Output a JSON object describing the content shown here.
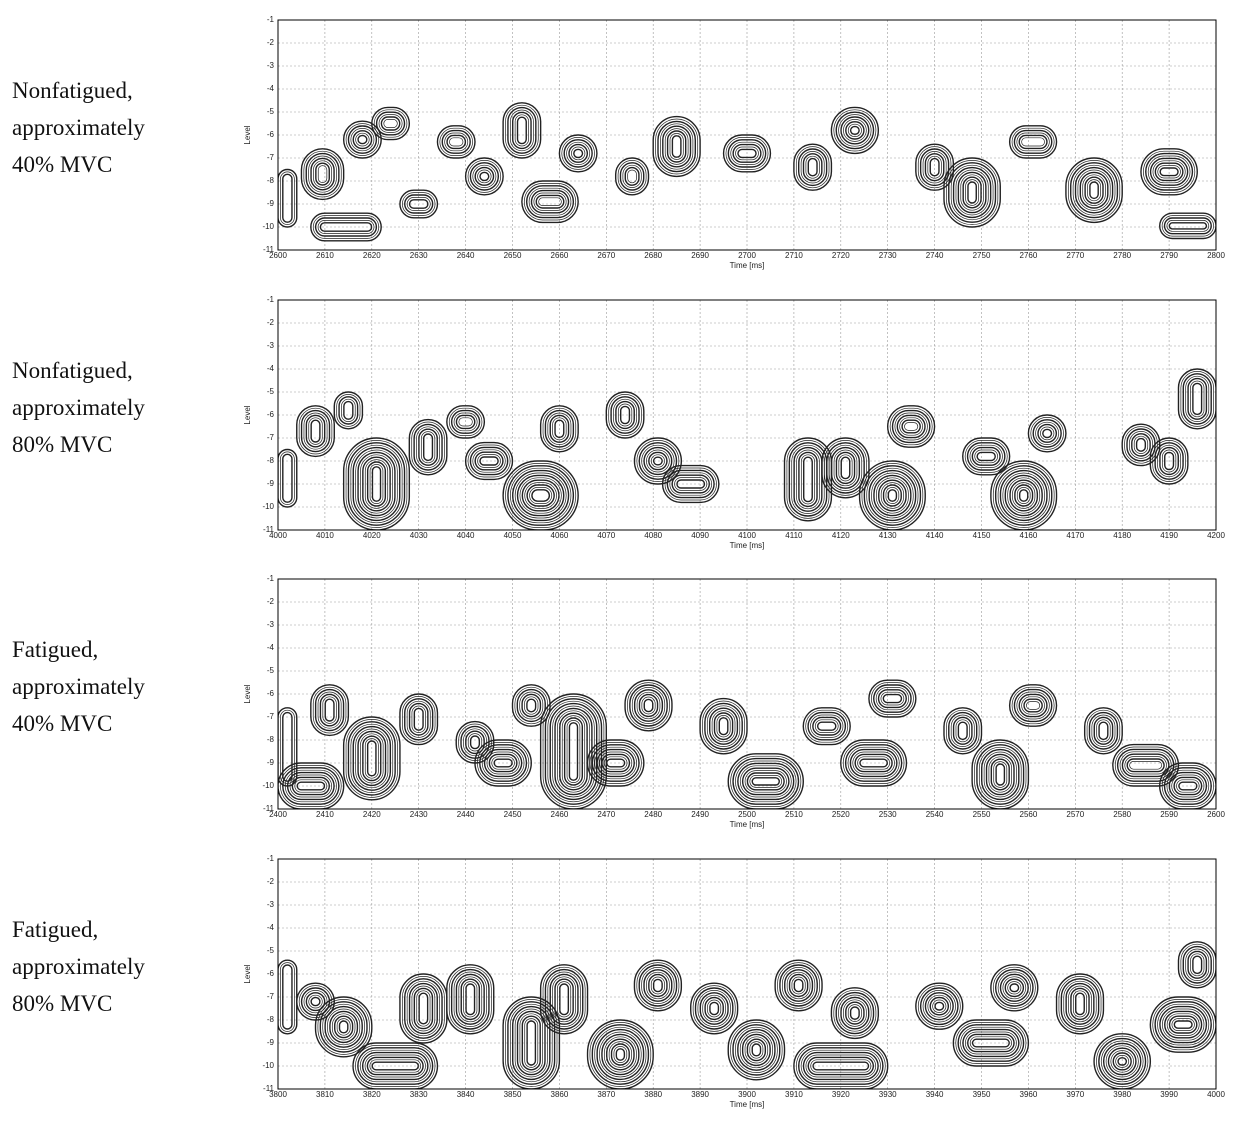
{
  "chart_data": [
    {
      "type": "contour",
      "annotations": [
        "Nonfatigued,",
        "approximately",
        "40% MVC"
      ],
      "xlabel": "Time [ms]",
      "ylabel": "Level",
      "xlim": [
        2600,
        2800
      ],
      "xticks": [
        2600,
        2610,
        2620,
        2630,
        2640,
        2650,
        2660,
        2670,
        2680,
        2690,
        2700,
        2710,
        2720,
        2730,
        2740,
        2750,
        2760,
        2770,
        2780,
        2790,
        2800
      ],
      "ylim": [
        -11,
        -1
      ],
      "yticks": [
        -1,
        -2,
        -3,
        -4,
        -5,
        -6,
        -7,
        -8,
        -9,
        -10,
        -11
      ],
      "grid": true,
      "color": "#222222",
      "regions": [
        {
          "x": [
            2600,
            2604
          ],
          "y": [
            -10,
            -7.5
          ]
        },
        {
          "x": [
            2605,
            2614
          ],
          "y": [
            -8.8,
            -6.6
          ]
        },
        {
          "x": [
            2607,
            2622
          ],
          "y": [
            -10.6,
            -9.4
          ]
        },
        {
          "x": [
            2614,
            2622
          ],
          "y": [
            -7,
            -5.4
          ]
        },
        {
          "x": [
            2620,
            2628
          ],
          "y": [
            -6.2,
            -4.8
          ]
        },
        {
          "x": [
            2626,
            2634
          ],
          "y": [
            -9.6,
            -8.4
          ]
        },
        {
          "x": [
            2634,
            2642
          ],
          "y": [
            -7,
            -5.6
          ]
        },
        {
          "x": [
            2640,
            2648
          ],
          "y": [
            -8.6,
            -7
          ]
        },
        {
          "x": [
            2648,
            2656
          ],
          "y": [
            -7,
            -4.6
          ]
        },
        {
          "x": [
            2652,
            2664
          ],
          "y": [
            -9.8,
            -8
          ]
        },
        {
          "x": [
            2660,
            2668
          ],
          "y": [
            -7.6,
            -6
          ]
        },
        {
          "x": [
            2672,
            2679
          ],
          "y": [
            -8.6,
            -7
          ]
        },
        {
          "x": [
            2680,
            2690
          ],
          "y": [
            -7.8,
            -5.2
          ]
        },
        {
          "x": [
            2695,
            2705
          ],
          "y": [
            -7.6,
            -6
          ]
        },
        {
          "x": [
            2710,
            2718
          ],
          "y": [
            -8.4,
            -6.4
          ]
        },
        {
          "x": [
            2718,
            2728
          ],
          "y": [
            -6.8,
            -4.8
          ]
        },
        {
          "x": [
            2736,
            2744
          ],
          "y": [
            -8.4,
            -6.4
          ]
        },
        {
          "x": [
            2742,
            2754
          ],
          "y": [
            -10,
            -7
          ]
        },
        {
          "x": [
            2756,
            2766
          ],
          "y": [
            -7,
            -5.6
          ]
        },
        {
          "x": [
            2768,
            2780
          ],
          "y": [
            -9.8,
            -7
          ]
        },
        {
          "x": [
            2784,
            2796
          ],
          "y": [
            -8.6,
            -6.6
          ]
        },
        {
          "x": [
            2788,
            2800
          ],
          "y": [
            -10.5,
            -9.4
          ]
        }
      ]
    },
    {
      "type": "contour",
      "annotations": [
        "Nonfatigued,",
        "approximately",
        "80% MVC"
      ],
      "xlabel": "Time [ms]",
      "ylabel": "Level",
      "xlim": [
        4000,
        4200
      ],
      "xticks": [
        4000,
        4010,
        4020,
        4030,
        4040,
        4050,
        4060,
        4070,
        4080,
        4090,
        4100,
        4110,
        4120,
        4130,
        4140,
        4150,
        4160,
        4170,
        4180,
        4190,
        4200
      ],
      "ylim": [
        -11,
        -1
      ],
      "yticks": [
        -1,
        -2,
        -3,
        -4,
        -5,
        -6,
        -7,
        -8,
        -9,
        -10,
        -11
      ],
      "grid": true,
      "color": "#222222",
      "regions": [
        {
          "x": [
            4000,
            4004
          ],
          "y": [
            -10,
            -7.5
          ]
        },
        {
          "x": [
            4004,
            4012
          ],
          "y": [
            -7.8,
            -5.6
          ]
        },
        {
          "x": [
            4012,
            4018
          ],
          "y": [
            -6.6,
            -5
          ]
        },
        {
          "x": [
            4014,
            4028
          ],
          "y": [
            -11,
            -7
          ]
        },
        {
          "x": [
            4028,
            4036
          ],
          "y": [
            -8.6,
            -6.2
          ]
        },
        {
          "x": [
            4036,
            4044
          ],
          "y": [
            -7,
            -5.6
          ]
        },
        {
          "x": [
            4040,
            4050
          ],
          "y": [
            -8.8,
            -7.2
          ]
        },
        {
          "x": [
            4048,
            4064
          ],
          "y": [
            -11,
            -8
          ]
        },
        {
          "x": [
            4056,
            4064
          ],
          "y": [
            -7.6,
            -5.6
          ]
        },
        {
          "x": [
            4070,
            4078
          ],
          "y": [
            -7,
            -5
          ]
        },
        {
          "x": [
            4076,
            4086
          ],
          "y": [
            -9,
            -7
          ]
        },
        {
          "x": [
            4082,
            4094
          ],
          "y": [
            -9.8,
            -8.2
          ]
        },
        {
          "x": [
            4108,
            4118
          ],
          "y": [
            -10.6,
            -7
          ]
        },
        {
          "x": [
            4116,
            4126
          ],
          "y": [
            -9.6,
            -7
          ]
        },
        {
          "x": [
            4124,
            4138
          ],
          "y": [
            -11,
            -8
          ]
        },
        {
          "x": [
            4130,
            4140
          ],
          "y": [
            -7.4,
            -5.6
          ]
        },
        {
          "x": [
            4146,
            4156
          ],
          "y": [
            -8.6,
            -7
          ]
        },
        {
          "x": [
            4152,
            4166
          ],
          "y": [
            -11,
            -8
          ]
        },
        {
          "x": [
            4160,
            4168
          ],
          "y": [
            -7.6,
            -6
          ]
        },
        {
          "x": [
            4180,
            4188
          ],
          "y": [
            -8.2,
            -6.4
          ]
        },
        {
          "x": [
            4186,
            4194
          ],
          "y": [
            -9,
            -7
          ]
        },
        {
          "x": [
            4192,
            4200
          ],
          "y": [
            -6.6,
            -4
          ]
        }
      ]
    },
    {
      "type": "contour",
      "annotations": [
        "Fatigued,",
        "approximately",
        "40% MVC"
      ],
      "xlabel": "Time [ms]",
      "ylabel": "Level",
      "xlim": [
        2400,
        2600
      ],
      "xticks": [
        2400,
        2410,
        2420,
        2430,
        2440,
        2450,
        2460,
        2470,
        2480,
        2490,
        2500,
        2510,
        2520,
        2530,
        2540,
        2550,
        2560,
        2570,
        2580,
        2590,
        2600
      ],
      "ylim": [
        -11,
        -1
      ],
      "yticks": [
        -1,
        -2,
        -3,
        -4,
        -5,
        -6,
        -7,
        -8,
        -9,
        -10,
        -11
      ],
      "grid": true,
      "color": "#222222",
      "regions": [
        {
          "x": [
            2400,
            2404
          ],
          "y": [
            -10,
            -6.6
          ]
        },
        {
          "x": [
            2400,
            2414
          ],
          "y": [
            -11,
            -9
          ]
        },
        {
          "x": [
            2407,
            2415
          ],
          "y": [
            -7.8,
            -5.6
          ]
        },
        {
          "x": [
            2414,
            2426
          ],
          "y": [
            -10.6,
            -7
          ]
        },
        {
          "x": [
            2426,
            2434
          ],
          "y": [
            -8.2,
            -6
          ]
        },
        {
          "x": [
            2438,
            2446
          ],
          "y": [
            -9,
            -7.2
          ]
        },
        {
          "x": [
            2442,
            2454
          ],
          "y": [
            -10,
            -8
          ]
        },
        {
          "x": [
            2450,
            2458
          ],
          "y": [
            -7.4,
            -5.6
          ]
        },
        {
          "x": [
            2456,
            2470
          ],
          "y": [
            -11,
            -6
          ]
        },
        {
          "x": [
            2466,
            2478
          ],
          "y": [
            -10,
            -8
          ]
        },
        {
          "x": [
            2474,
            2484
          ],
          "y": [
            -7.6,
            -5.4
          ]
        },
        {
          "x": [
            2490,
            2500
          ],
          "y": [
            -8.6,
            -6.2
          ]
        },
        {
          "x": [
            2496,
            2512
          ],
          "y": [
            -11,
            -8.6
          ]
        },
        {
          "x": [
            2512,
            2522
          ],
          "y": [
            -8.2,
            -6.6
          ]
        },
        {
          "x": [
            2520,
            2534
          ],
          "y": [
            -10,
            -8
          ]
        },
        {
          "x": [
            2526,
            2536
          ],
          "y": [
            -7,
            -5.4
          ]
        },
        {
          "x": [
            2542,
            2550
          ],
          "y": [
            -8.6,
            -6.6
          ]
        },
        {
          "x": [
            2548,
            2560
          ],
          "y": [
            -11,
            -8
          ]
        },
        {
          "x": [
            2556,
            2566
          ],
          "y": [
            -7.4,
            -5.6
          ]
        },
        {
          "x": [
            2572,
            2580
          ],
          "y": [
            -8.6,
            -6.6
          ]
        },
        {
          "x": [
            2578,
            2592
          ],
          "y": [
            -10,
            -8.2
          ]
        },
        {
          "x": [
            2588,
            2600
          ],
          "y": [
            -11,
            -9
          ]
        }
      ]
    },
    {
      "type": "contour",
      "annotations": [
        "Fatigued,",
        "approximately",
        "80% MVC"
      ],
      "xlabel": "Time [ms]",
      "ylabel": "Level",
      "xlim": [
        3800,
        4000
      ],
      "xticks": [
        3800,
        3810,
        3820,
        3830,
        3840,
        3850,
        3860,
        3870,
        3880,
        3890,
        3900,
        3910,
        3920,
        3930,
        3940,
        3950,
        3960,
        3970,
        3980,
        3990,
        4000
      ],
      "ylim": [
        -11,
        -1
      ],
      "yticks": [
        -1,
        -2,
        -3,
        -4,
        -5,
        -6,
        -7,
        -8,
        -9,
        -10,
        -11
      ],
      "grid": true,
      "color": "#222222",
      "regions": [
        {
          "x": [
            3800,
            3804
          ],
          "y": [
            -8.6,
            -5.4
          ]
        },
        {
          "x": [
            3804,
            3812
          ],
          "y": [
            -8,
            -6.4
          ]
        },
        {
          "x": [
            3808,
            3820
          ],
          "y": [
            -9.6,
            -7
          ]
        },
        {
          "x": [
            3816,
            3834
          ],
          "y": [
            -11,
            -9
          ]
        },
        {
          "x": [
            3826,
            3836
          ],
          "y": [
            -9,
            -6
          ]
        },
        {
          "x": [
            3836,
            3846
          ],
          "y": [
            -8.6,
            -5.6
          ]
        },
        {
          "x": [
            3848,
            3860
          ],
          "y": [
            -11,
            -7
          ]
        },
        {
          "x": [
            3856,
            3866
          ],
          "y": [
            -8.6,
            -5.6
          ]
        },
        {
          "x": [
            3866,
            3880
          ],
          "y": [
            -11,
            -8
          ]
        },
        {
          "x": [
            3876,
            3886
          ],
          "y": [
            -7.6,
            -5.4
          ]
        },
        {
          "x": [
            3888,
            3898
          ],
          "y": [
            -8.6,
            -6.4
          ]
        },
        {
          "x": [
            3896,
            3908
          ],
          "y": [
            -10.6,
            -8
          ]
        },
        {
          "x": [
            3906,
            3916
          ],
          "y": [
            -7.6,
            -5.4
          ]
        },
        {
          "x": [
            3910,
            3930
          ],
          "y": [
            -11,
            -9
          ]
        },
        {
          "x": [
            3918,
            3928
          ],
          "y": [
            -8.8,
            -6.6
          ]
        },
        {
          "x": [
            3936,
            3946
          ],
          "y": [
            -8.4,
            -6.4
          ]
        },
        {
          "x": [
            3944,
            3960
          ],
          "y": [
            -10,
            -8
          ]
        },
        {
          "x": [
            3952,
            3962
          ],
          "y": [
            -7.6,
            -5.6
          ]
        },
        {
          "x": [
            3966,
            3976
          ],
          "y": [
            -8.6,
            -6
          ]
        },
        {
          "x": [
            3974,
            3986
          ],
          "y": [
            -11,
            -8.6
          ]
        },
        {
          "x": [
            3986,
            4000
          ],
          "y": [
            -9.4,
            -7
          ]
        },
        {
          "x": [
            3992,
            4000
          ],
          "y": [
            -6.6,
            -4.6
          ]
        }
      ]
    }
  ]
}
